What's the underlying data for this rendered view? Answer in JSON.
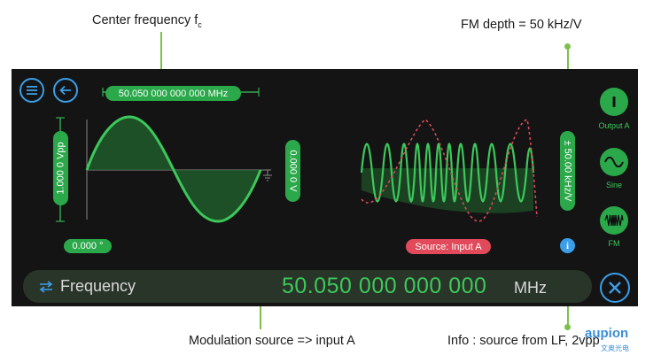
{
  "annotations": {
    "center_frequency": "Center frequency f",
    "center_frequency_sub": "c",
    "fm_depth": "FM depth = 50 kHz/V",
    "modulation_source": "Modulation source => input A",
    "info": "Info : source from LF, 2vpp"
  },
  "display": {
    "center_freq_pill": "50.050 000 000 000 MHz",
    "amplitude_pill": "1.000 0 Vpp",
    "offset_pill": "0.000 0 V",
    "phase_pill": "0.000 °",
    "fm_depth_pill": "± 50.00 kHz/V",
    "source_pill": "Source: Input A"
  },
  "side_buttons": {
    "output": "Output A",
    "waveform": "Sine",
    "modulation": "FM"
  },
  "parameter_bar": {
    "label": "Frequency",
    "value": "50.050 000 000 000",
    "unit": "MHz"
  },
  "watermark": {
    "brand": "aupion",
    "sub": "文奥光电"
  },
  "colors": {
    "accent_green": "#3cc85a",
    "pill_green": "#2aa84a",
    "source_pill": "#e04a5a",
    "nav_blue": "#3a9ee8",
    "panel_bg": "#141414"
  }
}
